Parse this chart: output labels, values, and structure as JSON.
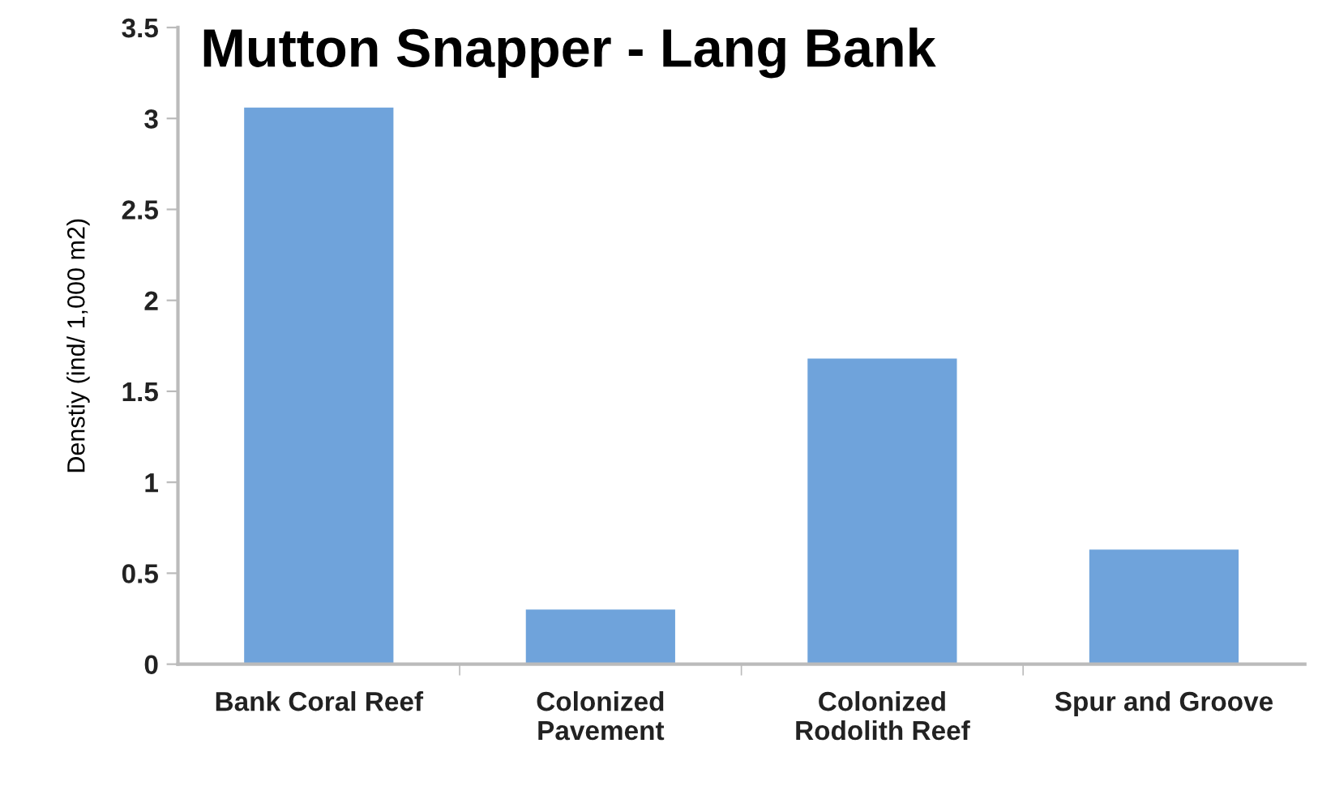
{
  "chart_data": {
    "type": "bar",
    "title": "Mutton Snapper - Lang Bank",
    "ylabel": "Denstiy (ind/ 1,000 m2)",
    "categories": [
      "Bank Coral Reef",
      "Colonized\nPavement",
      "Colonized\nRodolith Reef",
      "Spur and Groove"
    ],
    "values": [
      3.06,
      0.3,
      1.68,
      0.63
    ],
    "color": "#6fa3db",
    "ylim": [
      0,
      3.5
    ],
    "yticks": [
      0,
      {
        "value": 0.5,
        "label": "0.5"
      },
      1,
      {
        "value": 1.5,
        "label": "1.5"
      },
      2,
      {
        "value": 2.5,
        "label": "2.5"
      },
      3,
      {
        "value": 3.5,
        "label": "3.5"
      }
    ],
    "grid": false
  }
}
